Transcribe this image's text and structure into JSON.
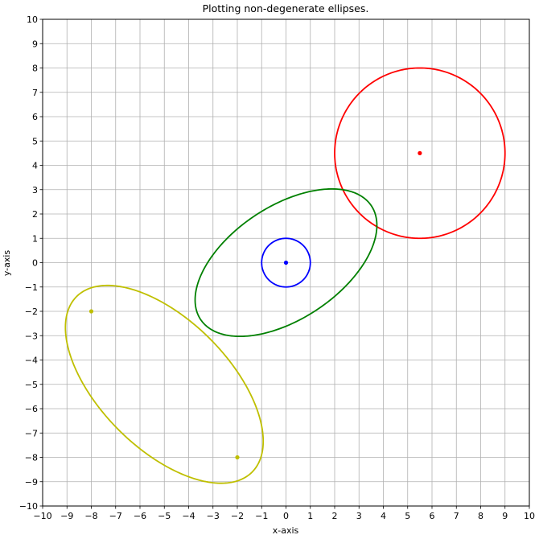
{
  "chart_data": {
    "type": "scatter",
    "title": "Plotting non-degenerate ellipses.",
    "xlabel": "x-axis",
    "ylabel": "y-axis",
    "xlim": [
      -10,
      10
    ],
    "ylim": [
      -10,
      10
    ],
    "xticks": [
      -10,
      -9,
      -8,
      -7,
      -6,
      -5,
      -4,
      -3,
      -2,
      -1,
      0,
      1,
      2,
      3,
      4,
      5,
      6,
      7,
      8,
      9,
      10
    ],
    "yticks": [
      -10,
      -9,
      -8,
      -7,
      -6,
      -5,
      -4,
      -3,
      -2,
      -1,
      0,
      1,
      2,
      3,
      4,
      5,
      6,
      7,
      8,
      9,
      10
    ],
    "grid": true,
    "minus_sign": "−",
    "shapes": [
      {
        "kind": "ellipse",
        "color": "#0000ff",
        "center": [
          0,
          0
        ],
        "semi_major": 1,
        "semi_minor": 1,
        "angle_deg": 0,
        "points": [
          [
            0,
            0
          ]
        ]
      },
      {
        "kind": "ellipse",
        "color": "#ff0000",
        "center": [
          5.5,
          4.5
        ],
        "semi_major": 3.5,
        "semi_minor": 3.5,
        "angle_deg": 0,
        "points": [
          [
            5.5,
            4.5
          ]
        ]
      },
      {
        "kind": "ellipse",
        "color": "#008000",
        "center": [
          0,
          0
        ],
        "semi_major": 4.215,
        "semi_minor": 2.315,
        "angle_deg": 33.69,
        "points": []
      },
      {
        "kind": "ellipse",
        "color": "#bfbf00",
        "center": [
          -5,
          -5
        ],
        "semi_major": 5.1,
        "semi_minor": 2.65,
        "angle_deg": -45,
        "points": [
          [
            -8,
            -2
          ],
          [
            -2,
            -8
          ]
        ]
      }
    ]
  }
}
